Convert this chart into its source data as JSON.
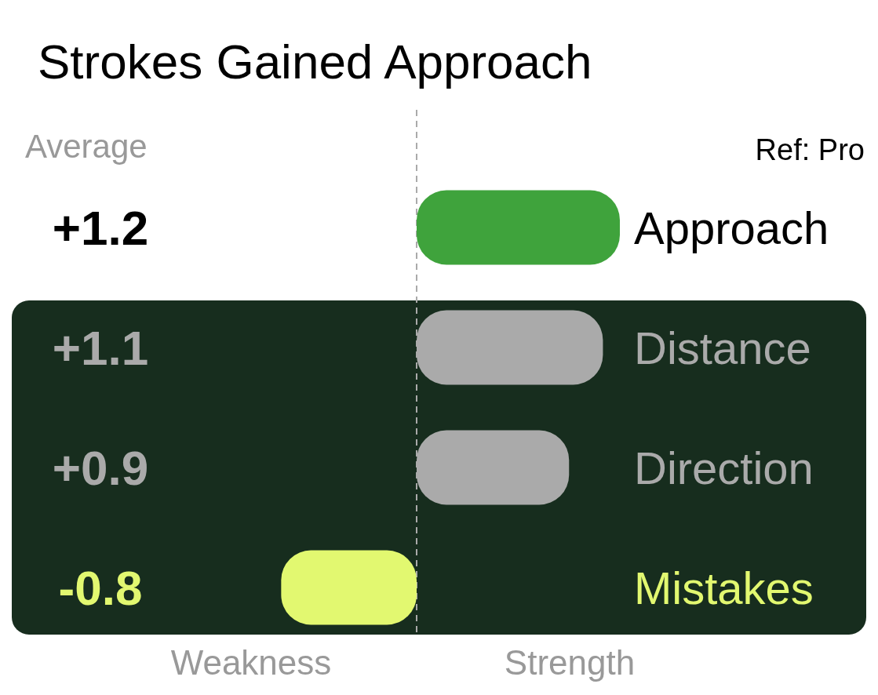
{
  "chart_data": {
    "type": "bar",
    "orientation": "horizontal",
    "title": "Strokes Gained Approach",
    "categories": [
      "Approach",
      "Distance",
      "Direction",
      "Mistakes"
    ],
    "values": [
      1.2,
      1.1,
      0.9,
      -0.8
    ],
    "value_labels": [
      "+1.2",
      "+1.1",
      "+0.9",
      "-0.8"
    ],
    "colors": [
      "#3fa33c",
      "#aaaaaa",
      "#aaaaaa",
      "#e2f870"
    ],
    "ref_lines": [
      {
        "axis": "x",
        "value": 0,
        "color": "#aaaaaa",
        "line_style": "dashed"
      }
    ],
    "annotations": [
      "Average",
      "Ref: Pro",
      "Weakness",
      "Strength"
    ]
  }
}
